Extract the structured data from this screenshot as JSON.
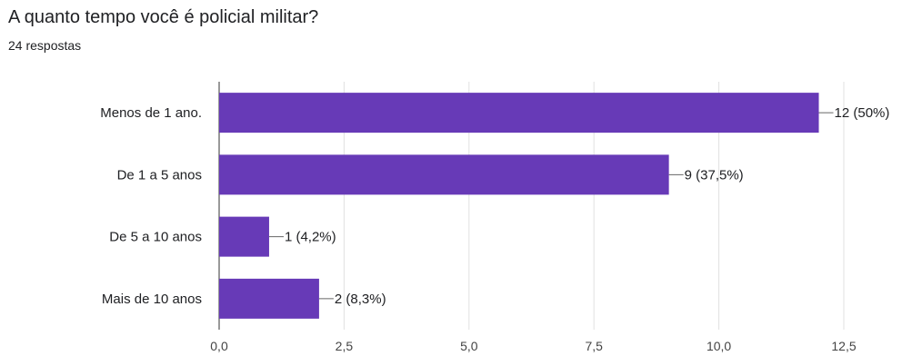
{
  "question": {
    "title": "A quanto tempo você é policial militar?",
    "responses": "24 respostas"
  },
  "chart_data": {
    "type": "bar",
    "orientation": "horizontal",
    "title": "",
    "xlabel": "",
    "ylabel": "",
    "categories": [
      "Menos de 1 ano.",
      "De 1 a 5 anos",
      "De 5 a 10 anos",
      "Mais de 10 anos"
    ],
    "values": [
      12,
      9,
      1,
      2
    ],
    "data_labels": [
      "12 (50%)",
      "9 (37,5%)",
      "1 (4,2%)",
      "2 (8,3%)"
    ],
    "xlim": [
      0,
      12.5
    ],
    "ticks": [
      0,
      2.5,
      5,
      7.5,
      10,
      12.5
    ],
    "tick_labels": [
      "0,0",
      "2,5",
      "5,0",
      "7,5",
      "10,0",
      "12,5"
    ],
    "grid": true,
    "bar_color": "#673ab7"
  }
}
